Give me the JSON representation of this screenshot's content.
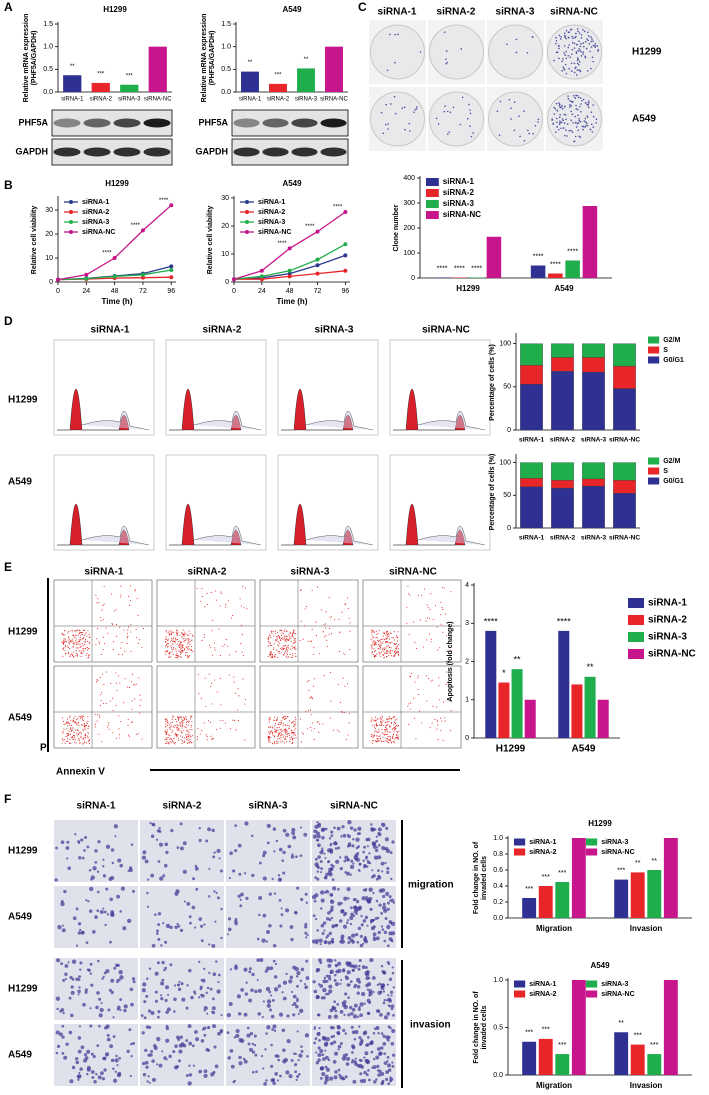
{
  "panels": [
    "A",
    "B",
    "C",
    "D",
    "E",
    "F"
  ],
  "blots": [
    {
      "labels": [
        "PHF5A",
        "GAPDH"
      ]
    },
    {
      "labels": [
        "PHF5A",
        "GAPDH"
      ]
    }
  ],
  "colony_images": {
    "columns": [
      "siRNA-1",
      "siRNA-2",
      "siRNA-3",
      "siRNA-NC"
    ],
    "rows": [
      "H1299",
      "A549"
    ]
  },
  "cell_cycle_images": {
    "columns": [
      "siRNA-1",
      "siRNA-2",
      "siRNA-3",
      "siRNA-NC"
    ],
    "rows": [
      "H1299",
      "A549"
    ]
  },
  "apoptosis_images": {
    "columns": [
      "siRNA-1",
      "siRNA-2",
      "siRNA-3",
      "siRNA-NC"
    ],
    "rows": [
      "H1299",
      "A549"
    ],
    "y_axis": "PI",
    "x_axis": "Annexin V"
  },
  "transwell_images": {
    "columns": [
      "siRNA-1",
      "siRNA-2",
      "siRNA-3",
      "siRNA-NC"
    ],
    "rows": [
      "H1299",
      "A549",
      "H1299",
      "A549"
    ],
    "groups": [
      "migration",
      "invasion"
    ]
  },
  "chart_data": [
    {
      "type": "bar",
      "title": "H1299",
      "ylabel": [
        "Relative mRNA expression",
        "(PHF5A/GAPDH)"
      ],
      "categories": [
        "siRNA-1",
        "siRNA-2",
        "siRNA-3",
        "siRNA-NC"
      ],
      "values": [
        0.37,
        0.2,
        0.16,
        1
      ],
      "colors": [
        "#2e3192",
        "#e8262a",
        "#1fae4b",
        "#c7168b"
      ],
      "annotations": [
        "**",
        "***",
        "***",
        null
      ],
      "ylim": [
        0,
        1.5
      ],
      "yticks": [
        {
          "value": 0,
          "label": "0.0"
        },
        {
          "value": 0.5,
          "label": "0.5"
        },
        {
          "value": 1,
          "label": "1.0"
        },
        {
          "value": 1.5,
          "label": "1.5"
        }
      ]
    },
    {
      "type": "bar",
      "title": "A549",
      "ylabel": [
        "Relative mRNA expression",
        "(PHF5A/GAPDH)"
      ],
      "categories": [
        "siRNA-1",
        "siRNA-2",
        "siRNA-3",
        "siRNA-NC"
      ],
      "values": [
        0.45,
        0.18,
        0.52,
        1
      ],
      "colors": [
        "#2e3192",
        "#e8262a",
        "#1fae4b",
        "#c7168b"
      ],
      "annotations": [
        "**",
        "***",
        "**",
        null
      ],
      "ylim": [
        0,
        1.5
      ],
      "yticks": [
        {
          "value": 0,
          "label": "0.0"
        },
        {
          "value": 0.5,
          "label": "0.5"
        },
        {
          "value": 1,
          "label": "1.0"
        },
        {
          "value": 1.5,
          "label": "1.5"
        }
      ]
    },
    {
      "type": "line",
      "title": "H1299",
      "xlabel": "Time (h)",
      "ylabel": "Relative cell viability",
      "x": [
        0,
        24,
        48,
        72,
        96
      ],
      "xlim": [
        0,
        100
      ],
      "xticks": [
        0,
        24,
        48,
        72,
        96
      ],
      "ylim": [
        0,
        35
      ],
      "yticks": [
        0,
        10,
        20,
        30
      ],
      "legend": "upper left",
      "series": [
        {
          "name": "siRNA-1",
          "color": "#2b3a8c",
          "values": [
            1,
            1.5,
            2.5,
            3.5,
            6.5
          ],
          "annotations": [
            null,
            null,
            null,
            null,
            null
          ]
        },
        {
          "name": "siRNA-2",
          "color": "#e8262a",
          "values": [
            1,
            1.2,
            1.6,
            1.8,
            2
          ],
          "annotations": [
            null,
            null,
            null,
            null,
            null
          ]
        },
        {
          "name": "siRNA-3",
          "color": "#1fae4b",
          "values": [
            1,
            1.4,
            2.3,
            3,
            5
          ],
          "annotations": [
            null,
            null,
            null,
            null,
            null
          ]
        },
        {
          "name": "siRNA-NC",
          "color": "#c7168b",
          "values": [
            1,
            3,
            10,
            21.5,
            32
          ],
          "annotations": [
            null,
            null,
            "****",
            "****",
            "****"
          ]
        }
      ]
    },
    {
      "type": "line",
      "title": "A549",
      "xlabel": "Time (h)",
      "ylabel": "Relative cell viability",
      "x": [
        0,
        24,
        48,
        72,
        96
      ],
      "xlim": [
        0,
        100
      ],
      "xticks": [
        0,
        24,
        48,
        72,
        96
      ],
      "ylim": [
        0,
        30
      ],
      "yticks": [
        0,
        10,
        20,
        30
      ],
      "legend": "upper left",
      "series": [
        {
          "name": "siRNA-1",
          "color": "#2b3a8c",
          "values": [
            1,
            1.5,
            3,
            6,
            9.5
          ],
          "annotations": [
            null,
            null,
            null,
            null,
            null
          ]
        },
        {
          "name": "siRNA-2",
          "color": "#e8262a",
          "values": [
            1,
            1,
            2,
            3,
            4
          ],
          "annotations": [
            null,
            null,
            null,
            null,
            null
          ]
        },
        {
          "name": "siRNA-3",
          "color": "#1fae4b",
          "values": [
            1,
            2,
            4,
            8,
            13.5
          ],
          "annotations": [
            null,
            null,
            null,
            null,
            null
          ]
        },
        {
          "name": "siRNA-NC",
          "color": "#c7168b",
          "values": [
            1,
            4,
            12,
            18,
            25
          ],
          "annotations": [
            null,
            null,
            "****",
            "****",
            "****"
          ]
        }
      ]
    },
    {
      "type": "grouped_bar",
      "ylabel": "Clone number",
      "categories": [
        "H1299",
        "A549"
      ],
      "ylim": [
        0,
        400
      ],
      "yticks": [
        0,
        100,
        200,
        300,
        400
      ],
      "legend": "upper left",
      "series": [
        {
          "name": "siRNA-1",
          "color": "#2e3192",
          "values": [
            2,
            50
          ],
          "annotations": [
            "****",
            "****"
          ]
        },
        {
          "name": "siRNA-2",
          "color": "#e8262a",
          "values": [
            2,
            18
          ],
          "annotations": [
            "****",
            "****"
          ]
        },
        {
          "name": "siRNA-3",
          "color": "#1fae4b",
          "values": [
            2,
            70
          ],
          "annotations": [
            "****",
            "****"
          ]
        },
        {
          "name": "siRNA-NC",
          "color": "#c7168b",
          "values": [
            165,
            288
          ],
          "annotations": [
            null,
            null
          ]
        }
      ]
    },
    {
      "type": "stacked_bar",
      "ylabel": "Percentage of cells (%)",
      "categories": [
        "siRNA-1",
        "siRNA-2",
        "siRNA-3",
        "siRNA-NC"
      ],
      "ylim": [
        0,
        110
      ],
      "yticks": [
        0,
        50,
        100
      ],
      "legend": "right",
      "series": [
        {
          "name": "G2/M",
          "color": "#1fae4b",
          "values": [
            25,
            16,
            16,
            26
          ]
        },
        {
          "name": "S",
          "color": "#e8262a",
          "values": [
            22,
            16,
            17,
            26
          ]
        },
        {
          "name": "G0/G1",
          "color": "#2e3192",
          "values": [
            53,
            68,
            67,
            48
          ]
        }
      ]
    },
    {
      "type": "stacked_bar",
      "ylabel": "Percentage of cells (%)",
      "categories": [
        "siRNA-1",
        "siRNA-2",
        "siRNA-3",
        "siRNA-NC"
      ],
      "ylim": [
        0,
        110
      ],
      "yticks": [
        0,
        50,
        100
      ],
      "legend": "right",
      "series": [
        {
          "name": "G2/M",
          "color": "#1fae4b",
          "values": [
            24,
            27,
            25,
            27
          ]
        },
        {
          "name": "S",
          "color": "#e8262a",
          "values": [
            13,
            12,
            11,
            20
          ]
        },
        {
          "name": "G0/G1",
          "color": "#2e3192",
          "values": [
            63,
            61,
            64,
            53
          ]
        }
      ]
    },
    {
      "type": "grouped_bar",
      "ylabel": "Apoptosis (fold change)",
      "categories": [
        "H1299",
        "A549"
      ],
      "ylim": [
        0,
        4
      ],
      "yticks": [
        0,
        1,
        2,
        3,
        4
      ],
      "legend": "right",
      "series": [
        {
          "name": "siRNA-1",
          "color": "#2e3192",
          "values": [
            2.8,
            2.8
          ],
          "annotations": [
            "****",
            "****"
          ]
        },
        {
          "name": "siRNA-2",
          "color": "#e8262a",
          "values": [
            1.45,
            1.4
          ],
          "annotations": [
            "*",
            null
          ]
        },
        {
          "name": "siRNA-3",
          "color": "#1fae4b",
          "values": [
            1.8,
            1.6
          ],
          "annotations": [
            "**",
            "**"
          ]
        },
        {
          "name": "siRNA-NC",
          "color": "#c7168b",
          "values": [
            1,
            1
          ],
          "annotations": [
            null,
            null
          ]
        }
      ]
    },
    {
      "type": "grouped_bar",
      "title": "H1299",
      "ylabel": [
        "Fold change in NO. of",
        "invaded cells"
      ],
      "categories": [
        "Migration",
        "Invasion"
      ],
      "ylim": [
        0,
        1
      ],
      "yticks": [
        {
          "value": 0,
          "label": "0.0"
        },
        0.2,
        0.4,
        0.6,
        0.8,
        {
          "value": 1,
          "label": "1.0"
        }
      ],
      "legend": "upper left",
      "series": [
        {
          "name": "siRNA-1",
          "color": "#2e3192",
          "values": [
            0.25,
            0.48
          ],
          "annotations": [
            "***",
            "***"
          ]
        },
        {
          "name": "siRNA-2",
          "color": "#e8262a",
          "values": [
            0.4,
            0.57
          ],
          "annotations": [
            "***",
            "**"
          ]
        },
        {
          "name": "siRNA-3",
          "color": "#1fae4b",
          "values": [
            0.45,
            0.6
          ],
          "annotations": [
            "***",
            "**"
          ]
        },
        {
          "name": "siRNA-NC",
          "color": "#c7168b",
          "values": [
            1,
            1
          ],
          "annotations": [
            null,
            null
          ]
        }
      ]
    },
    {
      "type": "grouped_bar",
      "title": "A549",
      "ylabel": [
        "Fold change in NO. of",
        "invaded cells"
      ],
      "categories": [
        "Migration",
        "Invasion"
      ],
      "ylim": [
        0,
        1
      ],
      "yticks": [
        {
          "value": 0,
          "label": "0.0"
        },
        0.5,
        {
          "value": 1,
          "label": "1.0"
        }
      ],
      "legend": "upper left",
      "series": [
        {
          "name": "siRNA-1",
          "color": "#2e3192",
          "values": [
            0.35,
            0.45
          ],
          "annotations": [
            "***",
            "**"
          ]
        },
        {
          "name": "siRNA-2",
          "color": "#e8262a",
          "values": [
            0.38,
            0.32
          ],
          "annotations": [
            "***",
            "***"
          ]
        },
        {
          "name": "siRNA-3",
          "color": "#1fae4b",
          "values": [
            0.22,
            0.22
          ],
          "annotations": [
            "***",
            "***"
          ]
        },
        {
          "name": "siRNA-NC",
          "color": "#c7168b",
          "values": [
            1,
            1
          ],
          "annotations": [
            null,
            null
          ]
        }
      ]
    }
  ]
}
